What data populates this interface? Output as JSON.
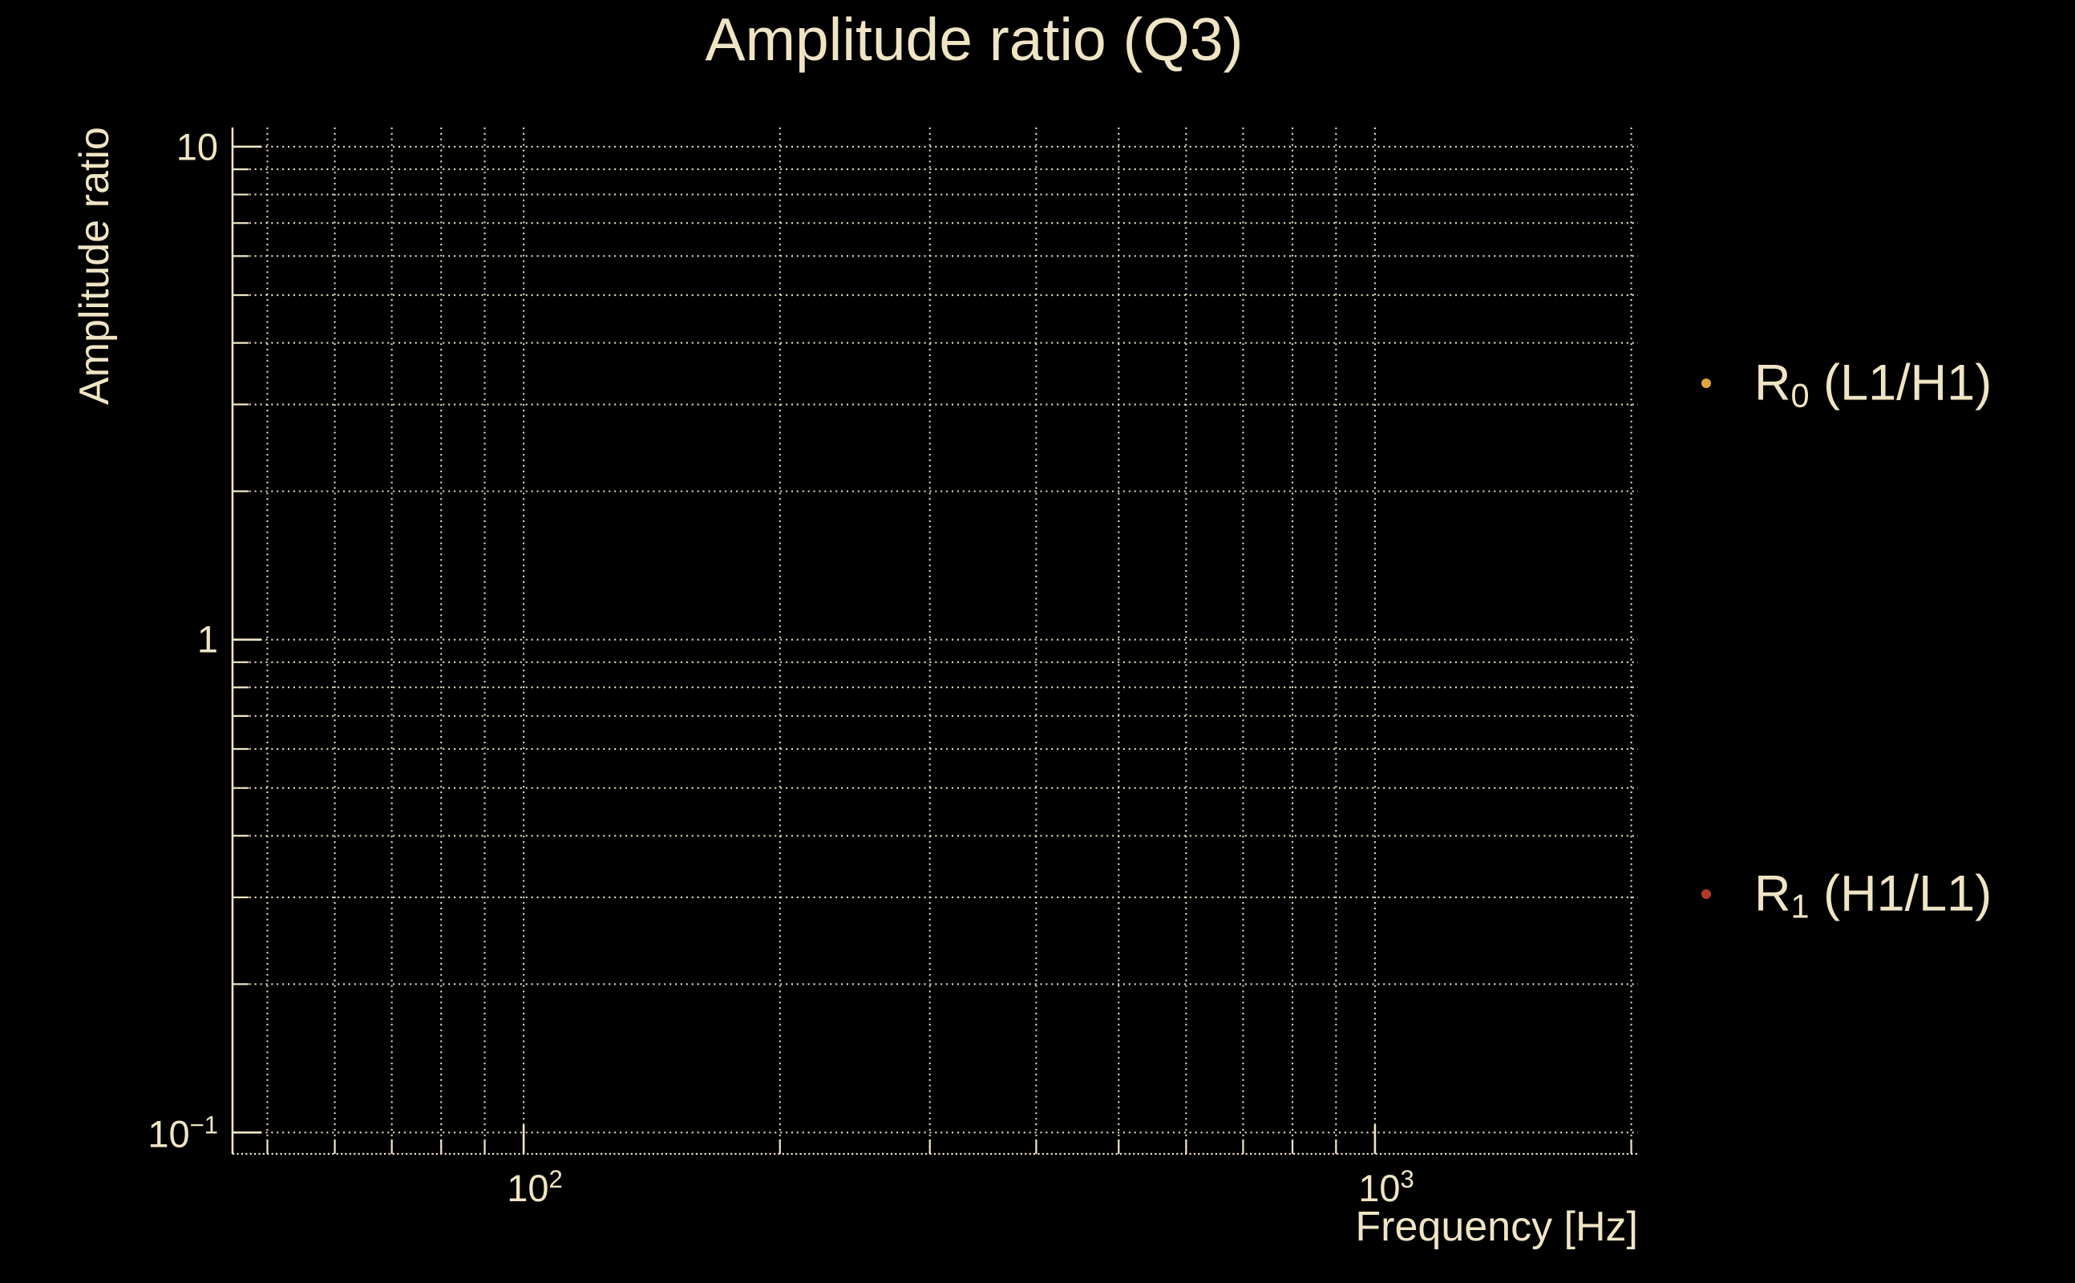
{
  "title": "Amplitude ratio (Q3)",
  "colors": {
    "background": "#000000",
    "text": "#EFE5C4",
    "grid": "#EDE6CC",
    "axis": "#EFE5C4",
    "marker_r0": "#DFA83D",
    "marker_r1": "#B5392B"
  },
  "axes": {
    "xlabel": "Frequency [Hz]",
    "ylabel": "Amplitude ratio",
    "x_ticks": [
      {
        "base": "10",
        "exp": "2",
        "value": 100
      },
      {
        "base": "10",
        "exp": "3",
        "value": 1000
      }
    ],
    "y_ticks": [
      {
        "text": "10",
        "value": 10
      },
      {
        "text": "1",
        "value": 1
      },
      {
        "base": "10",
        "exp": "−1",
        "value": 0.1
      }
    ]
  },
  "legend": [
    {
      "prefix": "R",
      "sub": "0",
      "suffix": " (L1/H1)",
      "marker_color": "#DFA83D"
    },
    {
      "prefix": "R",
      "sub": "1",
      "suffix": " (H1/L1)",
      "marker_color": "#B5392B"
    }
  ],
  "chart_data": {
    "type": "scatter",
    "title": "Amplitude ratio (Q3)",
    "xlabel": "Frequency [Hz]",
    "ylabel": "Amplitude ratio",
    "x_scale": "log",
    "y_scale": "log",
    "xlim": [
      45.5,
      2037
    ],
    "ylim": [
      0.0905,
      10.94
    ],
    "grid": true,
    "grid_style": "dotted",
    "x_gridlines": [
      50,
      60,
      70,
      80,
      90,
      100,
      200,
      300,
      400,
      500,
      600,
      700,
      800,
      900,
      1000,
      2000
    ],
    "y_gridlines": [
      10,
      9,
      8,
      7,
      6,
      5,
      4,
      3,
      2,
      1,
      0.9,
      0.8,
      0.7,
      0.6,
      0.5,
      0.4,
      0.3,
      0.2,
      0.1
    ],
    "x_major_ticks": [
      100,
      1000
    ],
    "y_major_ticks": [
      10,
      1,
      0.1
    ],
    "series": [
      {
        "name": "R0 (L1/H1)",
        "color": "#DFA83D",
        "marker": "dot",
        "points": []
      },
      {
        "name": "R1 (H1/L1)",
        "color": "#B5392B",
        "marker": "dot",
        "points": []
      }
    ],
    "legend_position": "outside-right",
    "notes": "No data points are visibly rendered inside the axes; only grid, axes and legend are shown."
  }
}
